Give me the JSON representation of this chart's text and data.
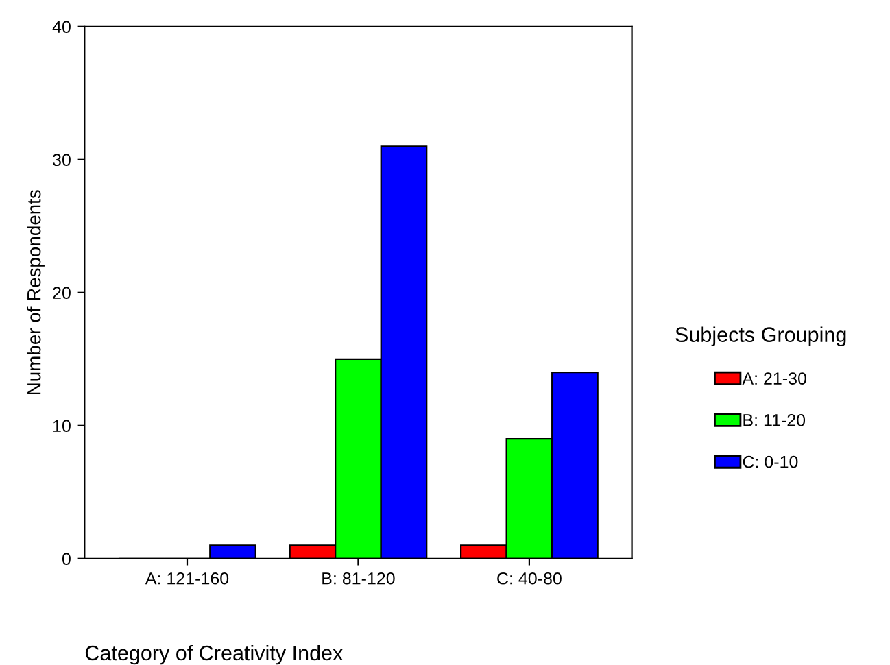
{
  "chart_data": {
    "type": "bar",
    "xlabel": "Category of Creativity Index",
    "ylabel": "Number of Respondents",
    "legend_title": "Subjects Grouping",
    "categories": [
      "A: 121-160",
      "B: 81-120",
      "C: 40-80"
    ],
    "series": [
      {
        "name": "A: 21-30",
        "color": "#ff0000",
        "values": [
          0,
          1,
          1
        ]
      },
      {
        "name": "B: 11-20",
        "color": "#00ff00",
        "values": [
          0,
          15,
          9
        ]
      },
      {
        "name": "C: 0-10",
        "color": "#0000ff",
        "values": [
          1,
          31,
          14
        ]
      }
    ],
    "ylim": [
      0,
      40
    ],
    "yticks": [
      0,
      10,
      20,
      30,
      40
    ],
    "grid": false,
    "legend": "right"
  }
}
